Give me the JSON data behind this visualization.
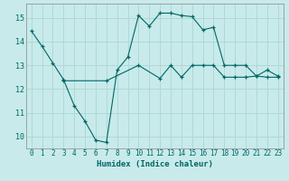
{
  "xlabel": "Humidex (Indice chaleur)",
  "background_color": "#c8eaea",
  "grid_color": "#b0d8d8",
  "line_color": "#006666",
  "xlim": [
    -0.5,
    23.5
  ],
  "ylim": [
    9.5,
    15.6
  ],
  "yticks": [
    10,
    11,
    12,
    13,
    14,
    15
  ],
  "xticks": [
    0,
    1,
    2,
    3,
    4,
    5,
    6,
    7,
    8,
    9,
    10,
    11,
    12,
    13,
    14,
    15,
    16,
    17,
    18,
    19,
    20,
    21,
    22,
    23
  ],
  "line1_x": [
    0,
    1,
    2,
    3,
    4,
    5,
    6,
    7,
    8,
    9,
    10,
    11,
    12,
    13,
    14,
    15,
    16,
    17,
    18,
    19,
    20,
    21,
    22,
    23
  ],
  "line1_y": [
    14.45,
    13.8,
    13.1,
    12.4,
    11.3,
    10.65,
    9.85,
    9.75,
    12.8,
    13.35,
    15.1,
    14.65,
    15.2,
    15.2,
    15.1,
    15.05,
    14.5,
    14.6,
    13.0,
    13.0,
    13.0,
    12.55,
    12.8,
    12.55
  ],
  "line2_x": [
    3,
    7,
    10,
    12,
    13,
    14,
    15,
    16,
    17,
    18,
    19,
    20,
    21,
    22,
    23
  ],
  "line2_y": [
    12.35,
    12.35,
    13.0,
    12.45,
    13.0,
    12.5,
    13.0,
    13.0,
    13.0,
    12.5,
    12.5,
    12.5,
    12.55,
    12.5,
    12.5
  ],
  "tick_fontsize": 5.5,
  "xlabel_fontsize": 6.5
}
